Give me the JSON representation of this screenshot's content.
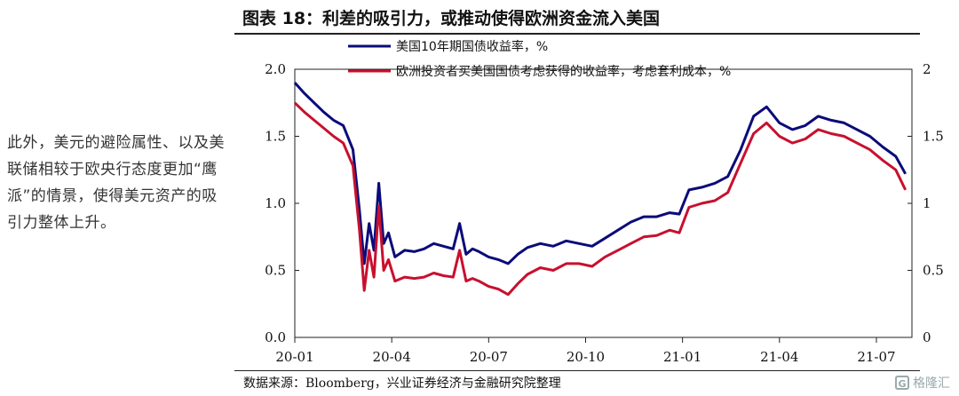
{
  "side_note": "此外，美元的避险属性、以及美联储相较于欧央行态度更加“鹰派”的情景，使得美元资产的吸引力整体上升。",
  "figure_title": "图表 18：利差的吸引力，或推动使得欧洲资金流入美国",
  "source": "数据来源：Bloomberg，兴业证券经济与金融研究院整理",
  "watermark": "格隆汇",
  "watermark_glyph": "G",
  "chart_data": {
    "type": "line",
    "x_start": "2020-01",
    "x_end": "2021-08",
    "x_ticks": [
      "20-01",
      "20-04",
      "20-07",
      "20-10",
      "21-01",
      "21-04",
      "21-07"
    ],
    "x_tick_positions": [
      0,
      3,
      6,
      9,
      12,
      15,
      18
    ],
    "x_range": [
      0,
      19.1
    ],
    "y_left": {
      "range": [
        0,
        2
      ],
      "ticks": [
        "0.0",
        "0.5",
        "1.0",
        "1.5",
        "2.0"
      ],
      "values": [
        0,
        0.5,
        1,
        1.5,
        2
      ]
    },
    "y_right": {
      "range": [
        0,
        2
      ],
      "ticks": [
        "0",
        "0.5",
        "1",
        "1.5",
        "2"
      ],
      "values": [
        0,
        0.5,
        1,
        1.5,
        2
      ]
    },
    "grid": false,
    "legend": "top-left",
    "series": [
      {
        "name": "美国10年期国债收益率，%",
        "color": "#0b0b7a",
        "axis": "left",
        "x": [
          0,
          0.3,
          0.6,
          0.9,
          1.2,
          1.5,
          1.8,
          2.0,
          2.15,
          2.3,
          2.45,
          2.6,
          2.75,
          2.9,
          3.1,
          3.4,
          3.7,
          4.0,
          4.3,
          4.6,
          4.9,
          5.1,
          5.3,
          5.5,
          5.7,
          6.0,
          6.3,
          6.6,
          6.9,
          7.2,
          7.6,
          8.0,
          8.4,
          8.8,
          9.2,
          9.6,
          10.0,
          10.4,
          10.8,
          11.2,
          11.6,
          11.9,
          12.2,
          12.6,
          13.0,
          13.4,
          13.8,
          14.2,
          14.6,
          15.0,
          15.4,
          15.8,
          16.2,
          16.6,
          17.0,
          17.4,
          17.8,
          18.2,
          18.6,
          18.9
        ],
        "y": [
          1.9,
          1.82,
          1.75,
          1.68,
          1.62,
          1.58,
          1.4,
          0.95,
          0.55,
          0.85,
          0.65,
          1.15,
          0.7,
          0.78,
          0.6,
          0.65,
          0.64,
          0.66,
          0.7,
          0.68,
          0.66,
          0.85,
          0.62,
          0.66,
          0.64,
          0.6,
          0.58,
          0.55,
          0.62,
          0.67,
          0.7,
          0.68,
          0.72,
          0.7,
          0.68,
          0.74,
          0.8,
          0.86,
          0.9,
          0.9,
          0.93,
          0.92,
          1.1,
          1.12,
          1.15,
          1.2,
          1.4,
          1.65,
          1.72,
          1.6,
          1.55,
          1.58,
          1.65,
          1.62,
          1.6,
          1.55,
          1.5,
          1.42,
          1.35,
          1.22
        ]
      },
      {
        "name": "欧洲投资者买美国国债考虑获得的收益率，考虑套利成本，%",
        "color": "#c8102e",
        "axis": "right",
        "x": [
          0,
          0.3,
          0.6,
          0.9,
          1.2,
          1.5,
          1.8,
          2.0,
          2.15,
          2.3,
          2.45,
          2.6,
          2.75,
          2.9,
          3.1,
          3.4,
          3.7,
          4.0,
          4.3,
          4.6,
          4.9,
          5.1,
          5.3,
          5.5,
          5.7,
          6.0,
          6.3,
          6.6,
          6.9,
          7.2,
          7.6,
          8.0,
          8.4,
          8.8,
          9.2,
          9.6,
          10.0,
          10.4,
          10.8,
          11.2,
          11.6,
          11.9,
          12.2,
          12.6,
          13.0,
          13.4,
          13.8,
          14.2,
          14.6,
          15.0,
          15.4,
          15.8,
          16.2,
          16.6,
          17.0,
          17.4,
          17.8,
          18.2,
          18.6,
          18.9
        ],
        "y": [
          1.75,
          1.68,
          1.62,
          1.56,
          1.5,
          1.45,
          1.28,
          0.8,
          0.35,
          0.65,
          0.45,
          0.98,
          0.5,
          0.58,
          0.42,
          0.45,
          0.44,
          0.45,
          0.48,
          0.46,
          0.45,
          0.65,
          0.42,
          0.44,
          0.42,
          0.38,
          0.36,
          0.32,
          0.4,
          0.47,
          0.52,
          0.5,
          0.55,
          0.55,
          0.53,
          0.6,
          0.65,
          0.7,
          0.75,
          0.76,
          0.8,
          0.78,
          0.97,
          1.0,
          1.02,
          1.08,
          1.3,
          1.52,
          1.6,
          1.5,
          1.45,
          1.48,
          1.55,
          1.52,
          1.5,
          1.45,
          1.4,
          1.32,
          1.25,
          1.1
        ]
      }
    ]
  }
}
